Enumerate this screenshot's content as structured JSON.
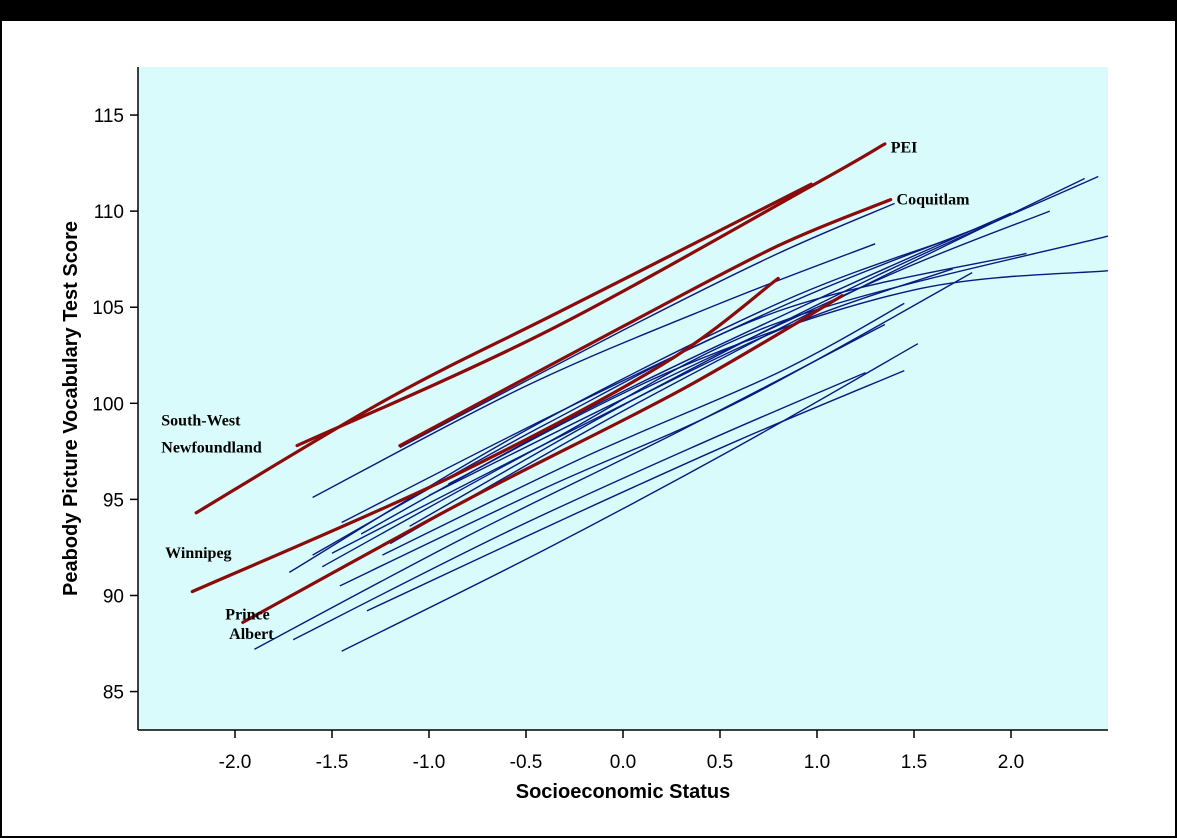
{
  "chart_data": {
    "type": "line",
    "title": "",
    "xlabel": "Socioeconomic Status",
    "ylabel": "Peabody Picture Vocabulary Test Score",
    "xlim": [
      -2.5,
      2.5
    ],
    "ylim": [
      83,
      117.5
    ],
    "xticks": [
      -2.0,
      -1.5,
      -1.0,
      -0.5,
      0.0,
      0.5,
      1.0,
      1.5,
      2.0
    ],
    "xtick_labels": [
      "-2.0",
      "-1.5",
      "-1.0",
      "-0.5",
      "0.0",
      "0.5",
      "1.0",
      "1.5",
      "2.0"
    ],
    "yticks": [
      85,
      90,
      95,
      100,
      105,
      110,
      115
    ],
    "ytick_labels": [
      "85",
      "90",
      "95",
      "100",
      "105",
      "110",
      "115"
    ],
    "grid": false,
    "background_color": "#d9fbfb",
    "highlight_color": "#8b0a0a",
    "other_color": "#0a1a80",
    "highlighted_series": [
      {
        "name": "PEI",
        "x": [
          -1.68,
          -0.4,
          0.97,
          1.35
        ],
        "y": [
          97.8,
          103.7,
          111.3,
          113.5
        ]
      },
      {
        "name": "South-West Newfoundland",
        "x": [
          -2.2,
          -1.2,
          -0.3,
          0.97
        ],
        "y": [
          94.3,
          100.3,
          104.9,
          111.4
        ]
      },
      {
        "name": "Coquitlam",
        "x": [
          -1.15,
          0.0,
          0.8,
          1.38
        ],
        "y": [
          97.8,
          104.0,
          108.2,
          110.6
        ]
      },
      {
        "name": "Winnipeg",
        "x": [
          -2.22,
          -0.9,
          0.2,
          0.8
        ],
        "y": [
          90.2,
          96.1,
          102.0,
          106.5
        ]
      },
      {
        "name": "Prince Albert",
        "x": [
          -1.96,
          -0.8,
          0.3,
          1.13
        ],
        "y": [
          88.6,
          95.0,
          100.7,
          105.6
        ]
      }
    ],
    "other_series": [
      {
        "x": [
          -1.15,
          0.0,
          0.8,
          1.4
        ],
        "y": [
          97.7,
          103.8,
          107.8,
          110.4
        ]
      },
      {
        "x": [
          -1.6,
          -0.5,
          0.5,
          1.3
        ],
        "y": [
          95.1,
          100.9,
          105.2,
          108.3
        ]
      },
      {
        "x": [
          -1.72,
          -0.5,
          0.8,
          1.7
        ],
        "y": [
          91.2,
          98.6,
          105.2,
          108.6
        ]
      },
      {
        "x": [
          -1.45,
          -0.3,
          0.9,
          1.9
        ],
        "y": [
          93.8,
          99.7,
          105.4,
          109.4
        ]
      },
      {
        "x": [
          -1.35,
          -0.2,
          1.0,
          2.0
        ],
        "y": [
          93.2,
          99.6,
          105.4,
          109.9
        ]
      },
      {
        "x": [
          -1.2,
          0.0,
          1.2,
          2.38
        ],
        "y": [
          92.7,
          99.6,
          105.9,
          111.7
        ]
      },
      {
        "x": [
          -1.1,
          0.0,
          1.3,
          2.45
        ],
        "y": [
          93.6,
          99.9,
          106.6,
          111.8
        ]
      },
      {
        "x": [
          -1.0,
          0.2,
          1.4,
          2.2
        ],
        "y": [
          95.2,
          101.2,
          106.8,
          110.0
        ]
      },
      {
        "x": [
          -0.9,
          0.3,
          1.5,
          2.5
        ],
        "y": [
          95.8,
          101.9,
          105.9,
          106.9
        ]
      },
      {
        "x": [
          -1.6,
          -0.4,
          0.8,
          2.08
        ],
        "y": [
          92.1,
          98.9,
          104.8,
          107.8
        ]
      },
      {
        "x": [
          -1.55,
          -0.4,
          0.8,
          2.5
        ],
        "y": [
          91.5,
          97.9,
          104.2,
          108.7
        ]
      },
      {
        "x": [
          -1.5,
          -0.3,
          0.8,
          1.7
        ],
        "y": [
          92.2,
          98.4,
          103.8,
          107.0
        ]
      },
      {
        "x": [
          -1.24,
          -0.2,
          0.8,
          1.45
        ],
        "y": [
          92.1,
          97.2,
          101.6,
          105.2
        ]
      },
      {
        "x": [
          -1.46,
          -0.4,
          0.6,
          1.8
        ],
        "y": [
          90.5,
          95.6,
          100.1,
          106.8
        ]
      },
      {
        "x": [
          -1.9,
          -0.8,
          0.3,
          1.35
        ],
        "y": [
          87.2,
          93.1,
          98.6,
          104.1
        ]
      },
      {
        "x": [
          -1.7,
          -0.6,
          0.4,
          1.25
        ],
        "y": [
          87.7,
          93.3,
          97.9,
          101.6
        ]
      },
      {
        "x": [
          -1.32,
          -0.3,
          0.6,
          1.45
        ],
        "y": [
          89.2,
          94.0,
          98.1,
          101.7
        ]
      },
      {
        "x": [
          -1.45,
          -0.4,
          0.6,
          1.52
        ],
        "y": [
          87.1,
          92.4,
          97.8,
          103.1
        ]
      }
    ],
    "annotations": [
      {
        "lines": [
          "PEI"
        ],
        "x": 1.38,
        "y": 113.3,
        "anchor": "start"
      },
      {
        "lines": [
          "Coquitlam"
        ],
        "x": 1.41,
        "y": 110.6,
        "anchor": "start"
      },
      {
        "lines": [
          "South-West"
        ],
        "x": -2.38,
        "y": 99.1,
        "anchor": "start"
      },
      {
        "lines": [
          "Newfoundland"
        ],
        "x": -2.38,
        "y": 97.7,
        "anchor": "start"
      },
      {
        "lines": [
          "Winnipeg"
        ],
        "x": -2.36,
        "y": 92.2,
        "anchor": "start"
      },
      {
        "lines": [
          "Prince"
        ],
        "x": -2.05,
        "y": 89.0,
        "anchor": "start"
      },
      {
        "lines": [
          "Albert"
        ],
        "x": -2.03,
        "y": 88.0,
        "anchor": "start"
      }
    ]
  }
}
